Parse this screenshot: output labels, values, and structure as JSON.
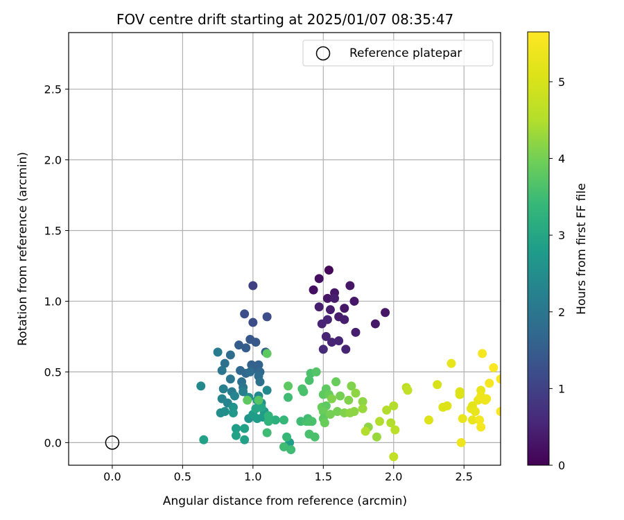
{
  "chart_data": {
    "type": "scatter",
    "title": "FOV centre drift starting at 2025/01/07 08:35:47",
    "xlabel": "Angular distance from reference (arcmin)",
    "ylabel": "Rotation from reference (arcmin)",
    "xlim": [
      -0.31,
      2.76
    ],
    "ylim": [
      -0.16,
      2.9
    ],
    "xticks": [
      "0.0",
      "0.5",
      "1.0",
      "1.5",
      "2.0",
      "2.5"
    ],
    "yticks": [
      "0.0",
      "0.5",
      "1.0",
      "1.5",
      "2.0",
      "2.5"
    ],
    "grid": true,
    "legend": {
      "position": "top-right",
      "entries": [
        "Reference platepar"
      ]
    },
    "reference": {
      "x": 0.0,
      "y": 0.0
    },
    "colorbar": {
      "label": "Hours from first FF file",
      "range": [
        0,
        5.65
      ],
      "ticks": [
        "0",
        "1",
        "2",
        "3",
        "4",
        "5"
      ],
      "colormap": "viridis"
    },
    "points": [
      [
        1.54,
        1.22,
        0.1
      ],
      [
        1.47,
        1.16,
        0.2
      ],
      [
        1.43,
        1.08,
        0.2
      ],
      [
        1.58,
        1.06,
        0.3
      ],
      [
        1.69,
        1.11,
        0.3
      ],
      [
        1.53,
        1.02,
        0.3
      ],
      [
        1.58,
        1.02,
        0.4
      ],
      [
        1.72,
        1.0,
        0.3
      ],
      [
        1.65,
        0.95,
        0.3
      ],
      [
        1.47,
        0.96,
        0.4
      ],
      [
        1.55,
        0.94,
        0.4
      ],
      [
        1.61,
        0.89,
        0.4
      ],
      [
        1.65,
        0.87,
        0.4
      ],
      [
        1.53,
        0.87,
        0.5
      ],
      [
        1.49,
        0.84,
        0.5
      ],
      [
        1.94,
        0.92,
        0.3
      ],
      [
        1.87,
        0.84,
        0.3
      ],
      [
        1.73,
        0.78,
        0.4
      ],
      [
        1.52,
        0.75,
        0.5
      ],
      [
        1.56,
        0.71,
        0.5
      ],
      [
        1.61,
        0.72,
        0.5
      ],
      [
        1.5,
        0.66,
        0.6
      ],
      [
        1.66,
        0.66,
        0.5
      ],
      [
        1.0,
        1.11,
        1.0
      ],
      [
        0.94,
        0.91,
        1.2
      ],
      [
        1.0,
        0.85,
        1.2
      ],
      [
        1.1,
        0.89,
        1.2
      ],
      [
        0.98,
        0.73,
        1.4
      ],
      [
        0.9,
        0.69,
        1.5
      ],
      [
        1.02,
        0.71,
        1.4
      ],
      [
        0.95,
        0.67,
        1.5
      ],
      [
        1.09,
        0.64,
        1.5
      ],
      [
        0.84,
        0.62,
        1.8
      ],
      [
        0.75,
        0.64,
        2.1
      ],
      [
        0.8,
        0.56,
        1.9
      ],
      [
        0.91,
        0.51,
        1.7
      ],
      [
        0.95,
        0.49,
        1.7
      ],
      [
        0.99,
        0.55,
        1.6
      ],
      [
        1.02,
        0.52,
        1.6
      ],
      [
        1.04,
        0.55,
        1.6
      ],
      [
        1.05,
        0.5,
        1.7
      ],
      [
        0.98,
        0.5,
        1.8
      ],
      [
        1.04,
        0.47,
        1.8
      ],
      [
        1.05,
        0.43,
        1.9
      ],
      [
        0.78,
        0.51,
        2.0
      ],
      [
        0.84,
        0.45,
        2.0
      ],
      [
        0.92,
        0.43,
        1.9
      ],
      [
        0.93,
        0.39,
        2.0
      ],
      [
        0.85,
        0.36,
        2.1
      ],
      [
        0.93,
        0.36,
        2.2
      ],
      [
        0.79,
        0.38,
        2.2
      ],
      [
        0.87,
        0.33,
        2.3
      ],
      [
        0.78,
        0.31,
        2.3
      ],
      [
        0.82,
        0.28,
        2.3
      ],
      [
        0.63,
        0.4,
        2.4
      ],
      [
        1.1,
        0.37,
        2.4
      ],
      [
        0.97,
        0.32,
        2.5
      ],
      [
        1.04,
        0.33,
        2.4
      ],
      [
        1.06,
        0.28,
        2.5
      ],
      [
        1.03,
        0.3,
        2.6
      ],
      [
        0.86,
        0.25,
        2.6
      ],
      [
        0.8,
        0.22,
        2.5
      ],
      [
        0.86,
        0.21,
        2.7
      ],
      [
        0.77,
        0.21,
        2.5
      ],
      [
        0.97,
        0.17,
        2.6
      ],
      [
        1.08,
        0.22,
        2.7
      ],
      [
        1.07,
        0.18,
        2.8
      ],
      [
        1.0,
        0.2,
        2.8
      ],
      [
        1.03,
        0.17,
        2.8
      ],
      [
        0.88,
        0.1,
        2.8
      ],
      [
        0.94,
        0.1,
        2.9
      ],
      [
        0.88,
        0.05,
        2.9
      ],
      [
        0.94,
        0.02,
        2.9
      ],
      [
        0.65,
        0.02,
        2.9
      ],
      [
        1.26,
        0.0,
        2.8
      ],
      [
        1.1,
        0.63,
        3.8
      ],
      [
        1.02,
        0.24,
        3.0
      ],
      [
        1.06,
        0.25,
        3.0
      ],
      [
        1.04,
        0.3,
        3.7
      ],
      [
        0.96,
        0.3,
        3.8
      ],
      [
        1.11,
        0.19,
        3.3
      ],
      [
        1.16,
        0.16,
        3.2
      ],
      [
        1.11,
        0.15,
        3.3
      ],
      [
        1.22,
        0.16,
        3.4
      ],
      [
        1.1,
        0.07,
        3.5
      ],
      [
        1.25,
        0.4,
        3.8
      ],
      [
        1.25,
        0.32,
        3.5
      ],
      [
        1.35,
        0.38,
        3.6
      ],
      [
        1.36,
        0.36,
        3.6
      ],
      [
        1.4,
        0.44,
        3.6
      ],
      [
        1.41,
        0.49,
        3.6
      ],
      [
        1.45,
        0.5,
        3.7
      ],
      [
        1.34,
        0.15,
        3.5
      ],
      [
        1.38,
        0.15,
        3.6
      ],
      [
        1.39,
        0.17,
        3.5
      ],
      [
        1.4,
        0.15,
        3.6
      ],
      [
        1.42,
        0.15,
        3.6
      ],
      [
        1.24,
        0.04,
        3.4
      ],
      [
        1.22,
        -0.03,
        3.5
      ],
      [
        1.27,
        -0.05,
        3.5
      ],
      [
        1.4,
        0.06,
        3.6
      ],
      [
        1.44,
        0.04,
        3.6
      ],
      [
        1.5,
        0.34,
        3.8
      ],
      [
        1.52,
        0.38,
        3.8
      ],
      [
        1.54,
        0.34,
        3.9
      ],
      [
        1.49,
        0.25,
        3.9
      ],
      [
        1.52,
        0.26,
        3.8
      ],
      [
        1.5,
        0.22,
        3.9
      ],
      [
        1.5,
        0.17,
        3.8
      ],
      [
        1.51,
        0.14,
        3.9
      ],
      [
        1.55,
        0.2,
        4.0
      ],
      [
        1.59,
        0.43,
        3.9
      ],
      [
        1.56,
        0.31,
        4.1
      ],
      [
        1.62,
        0.33,
        4.0
      ],
      [
        1.6,
        0.22,
        4.0
      ],
      [
        1.65,
        0.21,
        4.1
      ],
      [
        1.68,
        0.3,
        4.1
      ],
      [
        1.7,
        0.4,
        4.1
      ],
      [
        1.73,
        0.35,
        4.2
      ],
      [
        1.69,
        0.21,
        4.2
      ],
      [
        1.72,
        0.22,
        4.2
      ],
      [
        1.78,
        0.29,
        4.2
      ],
      [
        1.78,
        0.24,
        4.3
      ],
      [
        1.82,
        0.11,
        4.2
      ],
      [
        1.8,
        0.08,
        4.5
      ],
      [
        1.88,
        0.04,
        4.3
      ],
      [
        1.9,
        0.15,
        4.5
      ],
      [
        1.95,
        0.23,
        4.5
      ],
      [
        1.98,
        0.14,
        4.5
      ],
      [
        2.0,
        0.26,
        4.5
      ],
      [
        2.01,
        0.09,
        4.6
      ],
      [
        2.09,
        0.39,
        4.6
      ],
      [
        2.1,
        0.37,
        4.7
      ],
      [
        2.0,
        -0.1,
        4.7
      ],
      [
        2.25,
        0.16,
        5.1
      ],
      [
        2.31,
        0.41,
        5.0
      ],
      [
        2.35,
        0.25,
        5.1
      ],
      [
        2.38,
        0.26,
        5.1
      ],
      [
        2.41,
        0.56,
        5.3
      ],
      [
        2.47,
        0.34,
        5.1
      ],
      [
        2.47,
        0.36,
        5.1
      ],
      [
        2.49,
        0.17,
        5.3
      ],
      [
        2.48,
        0.0,
        5.4
      ],
      [
        2.55,
        0.24,
        5.3
      ],
      [
        2.56,
        0.26,
        5.2
      ],
      [
        2.56,
        0.16,
        5.3
      ],
      [
        2.58,
        0.22,
        5.3
      ],
      [
        2.6,
        0.3,
        5.3
      ],
      [
        2.62,
        0.37,
        5.3
      ],
      [
        2.62,
        0.33,
        5.4
      ],
      [
        2.61,
        0.16,
        5.5
      ],
      [
        2.62,
        0.11,
        5.5
      ],
      [
        2.63,
        0.63,
        5.5
      ],
      [
        2.65,
        0.3,
        5.4
      ],
      [
        2.66,
        0.31,
        5.4
      ],
      [
        2.68,
        0.42,
        5.5
      ],
      [
        2.71,
        0.53,
        5.6
      ],
      [
        2.76,
        0.45,
        5.6
      ],
      [
        2.76,
        0.22,
        5.6
      ]
    ]
  }
}
